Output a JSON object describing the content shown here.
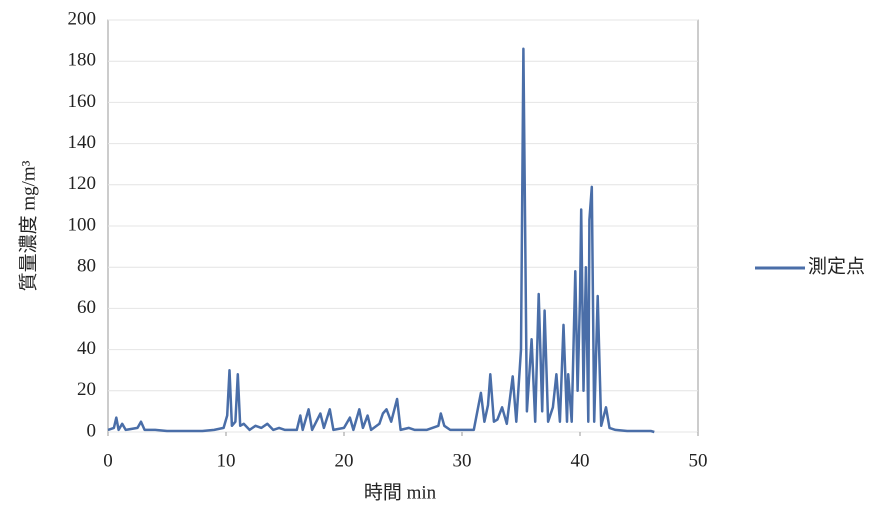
{
  "chart_data": {
    "type": "line",
    "x_label": "時間 min",
    "y_label": "質量濃度 mg/m³",
    "xlim": [
      0,
      50
    ],
    "xticks": [
      0,
      10,
      20,
      30,
      40,
      50
    ],
    "ylim": [
      0,
      200
    ],
    "yticks": [
      0,
      20,
      40,
      60,
      80,
      100,
      120,
      140,
      160,
      180,
      200
    ],
    "grid": true,
    "legend": "right",
    "x": [
      0,
      0.5,
      0.7,
      0.9,
      1.2,
      1.5,
      2.5,
      2.8,
      3.1,
      4,
      5,
      6,
      7,
      8,
      9,
      9.8,
      10.1,
      10.3,
      10.5,
      10.8,
      11,
      11.2,
      11.5,
      12,
      12.5,
      13,
      13.5,
      14,
      14.5,
      15,
      15.5,
      16,
      16.3,
      16.5,
      17,
      17.3,
      18,
      18.3,
      18.8,
      19.1,
      20,
      20.5,
      20.8,
      21.3,
      21.6,
      22,
      22.3,
      23,
      23.3,
      23.6,
      24,
      24.5,
      24.8,
      25.5,
      26,
      27,
      28,
      28.2,
      28.5,
      29,
      30,
      31,
      31.6,
      31.9,
      32.2,
      32.4,
      32.7,
      33,
      33.4,
      33.8,
      34.3,
      34.6,
      35,
      35.2,
      35.5,
      35.9,
      36.2,
      36.5,
      36.8,
      37,
      37.3,
      37.7,
      38,
      38.3,
      38.6,
      38.9,
      39,
      39.3,
      39.6,
      39.8,
      40,
      40.1,
      40.3,
      40.5,
      40.7,
      40.8,
      41,
      41.2,
      41.5,
      41.8,
      42.2,
      42.5,
      43,
      44,
      45,
      46,
      46.3
    ],
    "series": [
      {
        "name": "測定点",
        "color": "#4a6ea8",
        "values": [
          1,
          2,
          7,
          1,
          4,
          1,
          2,
          5,
          1,
          1,
          0.5,
          0.5,
          0.5,
          0.5,
          1,
          2,
          8,
          30,
          3,
          5,
          28,
          3,
          4,
          1,
          3,
          2,
          4,
          1,
          2,
          1,
          1,
          1,
          8,
          1,
          11,
          1,
          9,
          2,
          11,
          1,
          2,
          7,
          1,
          11,
          2,
          8,
          1,
          4,
          9,
          11,
          5,
          16,
          1,
          2,
          1,
          1,
          3,
          9,
          3,
          1,
          1,
          1,
          19,
          5,
          13,
          28,
          5,
          6,
          12,
          4,
          27,
          5,
          40,
          186,
          10,
          45,
          5,
          67,
          10,
          59,
          5,
          12,
          28,
          5,
          52,
          5,
          28,
          5,
          78,
          20,
          65,
          108,
          20,
          80,
          5,
          103,
          119,
          5,
          66,
          3,
          12,
          2,
          1,
          0.5,
          0.5,
          0.5,
          0
        ]
      }
    ]
  }
}
